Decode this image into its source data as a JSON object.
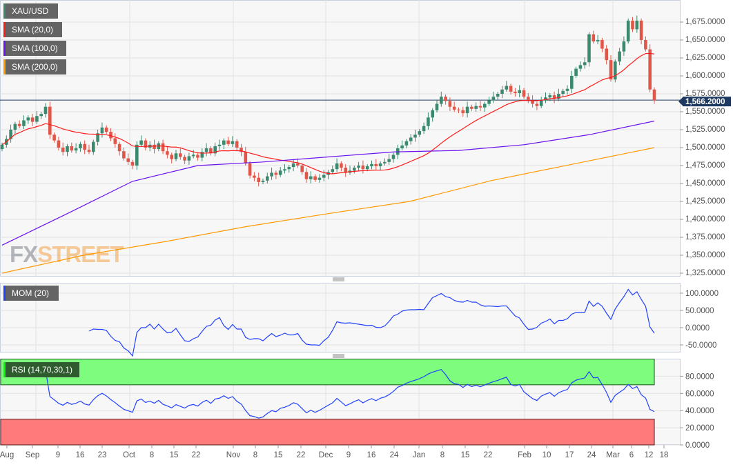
{
  "chart_data": [
    {
      "type": "candlestick",
      "symbol": "XAU/USD",
      "legend": [
        {
          "label": "XAU/USD",
          "color": "#3b8a6e"
        },
        {
          "label": "SMA (20,0)",
          "color": "#ff1a1a"
        },
        {
          "label": "SMA (100,0)",
          "color": "#6a12f0"
        },
        {
          "label": "SMA (200,0)",
          "color": "#ff9900"
        }
      ],
      "ylim": [
        1325,
        1700
      ],
      "y_ticks": [
        "1,675.0000",
        "1,650.0000",
        "1,625.0000",
        "1,600.0000",
        "1,575.0000",
        "1,550.0000",
        "1,525.0000",
        "1,500.0000",
        "1,475.0000",
        "1,450.0000",
        "1,425.0000",
        "1,400.0000",
        "1,375.0000",
        "1,350.0000",
        "1,325.0000"
      ],
      "y_tick_values": [
        1675,
        1650,
        1625,
        1600,
        1575,
        1550,
        1525,
        1500,
        1475,
        1450,
        1425,
        1400,
        1375,
        1350,
        1325
      ],
      "last_price": 1566.2,
      "last_price_label": "1,566.2000",
      "first_open": 1498,
      "close": [
        1504,
        1512,
        1525,
        1533,
        1530,
        1538,
        1542,
        1536,
        1544,
        1547,
        1557,
        1518,
        1510,
        1500,
        1494,
        1502,
        1496,
        1499,
        1505,
        1497,
        1494,
        1508,
        1520,
        1528,
        1522,
        1513,
        1505,
        1495,
        1485,
        1480,
        1475,
        1504,
        1510,
        1500,
        1504,
        1498,
        1506,
        1495,
        1490,
        1484,
        1492,
        1487,
        1482,
        1488,
        1490,
        1486,
        1494,
        1499,
        1492,
        1502,
        1504,
        1510,
        1505,
        1509,
        1500,
        1494,
        1478,
        1461,
        1458,
        1452,
        1454,
        1460,
        1465,
        1462,
        1468,
        1470,
        1473,
        1478,
        1475,
        1466,
        1456,
        1460,
        1455,
        1458,
        1462,
        1466,
        1470,
        1478,
        1472,
        1465,
        1468,
        1472,
        1475,
        1470,
        1474,
        1477,
        1474,
        1478,
        1480,
        1484,
        1490,
        1499,
        1503,
        1509,
        1514,
        1518,
        1523,
        1530,
        1542,
        1552,
        1561,
        1571,
        1565,
        1557,
        1553,
        1552,
        1548,
        1557,
        1554,
        1558,
        1556,
        1561,
        1566,
        1571,
        1575,
        1581,
        1586,
        1578,
        1576,
        1580,
        1571,
        1566,
        1561,
        1558,
        1566,
        1570,
        1573,
        1568,
        1575,
        1579,
        1582,
        1600,
        1610,
        1615,
        1619,
        1658,
        1648,
        1650,
        1638,
        1622,
        1595,
        1620,
        1634,
        1648,
        1677,
        1665,
        1677,
        1650,
        1637,
        1581,
        1566
      ],
      "sma_20": {
        "period": 20
      },
      "sma_100": [
        1364,
        1408,
        1453,
        1475,
        1480,
        1487,
        1494,
        1496,
        1504,
        1518,
        1537
      ],
      "sma_200": [
        1325,
        1350,
        1369,
        1390,
        1408,
        1425,
        1454,
        1477,
        1500
      ],
      "colors": {
        "up": "#3b8a6e",
        "down": "#e0574a",
        "sma20": "#ff1a1a",
        "sma100": "#6a12f0",
        "sma200": "#ff9900",
        "last_price": "#1f3a60"
      }
    },
    {
      "type": "line",
      "label": "MOM (20)",
      "period": 20,
      "color": "#2040ff",
      "ylim": [
        -60,
        120
      ],
      "y_ticks": [
        "100.0000",
        "50.0000",
        "0.0000",
        "-50.0000"
      ],
      "y_tick_values": [
        100,
        50,
        0,
        -50
      ]
    },
    {
      "type": "line",
      "label": "RSI (14,70,30,1)",
      "period": 14,
      "overbought": 70,
      "oversold": 30,
      "color": "#2040ff",
      "ylim": [
        0,
        100
      ],
      "y_ticks": [
        "80.0000",
        "60.0000",
        "40.0000",
        "20.0000",
        "0.0000"
      ],
      "y_tick_values": [
        80,
        60,
        40,
        20,
        0
      ],
      "zone_colors": {
        "overbought": "#7dfc7d",
        "oversold": "#ff7b7b"
      }
    }
  ],
  "x_axis": {
    "ticks": [
      "Aug",
      "Sep",
      "9",
      "16",
      "23",
      "Oct",
      "8",
      "15",
      "22",
      "Nov",
      "8",
      "15",
      "22",
      "Dec",
      "9",
      "16",
      "24",
      "Jan",
      "8",
      "15",
      "22",
      "Feb",
      "10",
      "17",
      "24",
      "Mar",
      "6",
      "12",
      "18"
    ]
  },
  "watermark": {
    "part1": "FX",
    "part2": "STREET"
  }
}
